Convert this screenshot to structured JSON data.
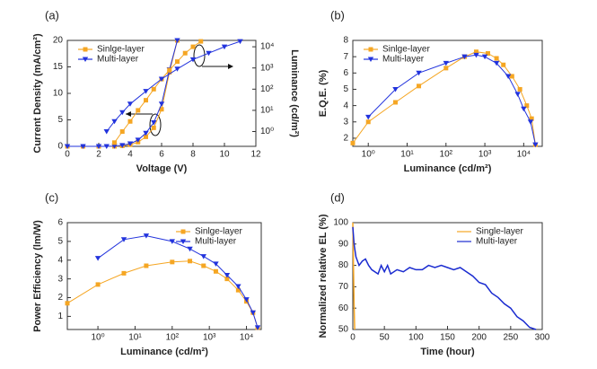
{
  "chart_data": [
    {
      "type": "line",
      "label": "(a)",
      "xlabel": "Voltage (V)",
      "ylabel": "Current Density (mA/cm²)",
      "y2label": "Luminance (cd/m²)",
      "xlim": [
        0,
        12
      ],
      "xticks": [
        0,
        2,
        4,
        6,
        8,
        10,
        12
      ],
      "ylim": [
        0,
        20
      ],
      "yticks": [
        0,
        5,
        10,
        15,
        20
      ],
      "y2lim": [
        0.2,
        20000
      ],
      "y2scale": "log",
      "y2ticks": [
        {
          "value": 1,
          "label": "10⁰"
        },
        {
          "value": 10,
          "label": "10¹"
        },
        {
          "value": 100,
          "label": "10²"
        },
        {
          "value": 1000,
          "label": "10³"
        },
        {
          "value": 10000,
          "label": "10⁴"
        }
      ],
      "legend": "upper left",
      "series": [
        {
          "name": "Sinlge-layer",
          "color": "#f5a623",
          "marker": "square",
          "x": [
            0,
            1,
            2,
            3,
            3.5,
            4,
            4.5,
            5,
            5.5,
            6,
            6.5,
            7
          ],
          "values": [
            0,
            0,
            0,
            0,
            0.1,
            0.3,
            0.8,
            1.8,
            3.5,
            7,
            14,
            20
          ]
        },
        {
          "name": "Multi-layer",
          "color": "#2233dd",
          "marker": "triangle-down",
          "x": [
            0,
            1,
            2,
            2.5,
            3,
            3.5,
            4,
            4.5,
            5,
            5.5,
            6,
            6.5,
            7
          ],
          "values": [
            0,
            0,
            0,
            0,
            0.05,
            0.2,
            0.5,
            1.2,
            2.5,
            4.5,
            8,
            14.5,
            20
          ]
        },
        {
          "color": "#f5a623",
          "marker": "square",
          "axis": "y2",
          "x": [
            3,
            3.5,
            4,
            4.5,
            5,
            5.5,
            6,
            6.5,
            7,
            7.5,
            8,
            8.5
          ],
          "values": [
            0.3,
            1,
            3,
            10,
            30,
            100,
            300,
            800,
            2000,
            5000,
            10000,
            18000
          ]
        },
        {
          "color": "#2233dd",
          "marker": "triangle-down",
          "axis": "y2",
          "x": [
            2.5,
            3,
            3.5,
            4,
            5,
            6,
            7,
            8,
            9,
            10,
            11
          ],
          "values": [
            1,
            3,
            8,
            20,
            80,
            300,
            900,
            2500,
            5000,
            10000,
            18000
          ]
        }
      ]
    },
    {
      "type": "line",
      "label": "(b)",
      "xlabel": "Luminance (cd/m²)",
      "ylabel": "E.Q.E. (%)",
      "xlim": [
        0.4,
        30000
      ],
      "xscale": "log",
      "xticks": [
        {
          "value": 1,
          "label": "10⁰"
        },
        {
          "value": 10,
          "label": "10¹"
        },
        {
          "value": 100,
          "label": "10²"
        },
        {
          "value": 1000,
          "label": "10³"
        },
        {
          "value": 10000,
          "label": "10⁴"
        }
      ],
      "ylim": [
        1.5,
        8
      ],
      "yticks": [
        2,
        3,
        4,
        5,
        6,
        7,
        8
      ],
      "legend": "upper left",
      "series": [
        {
          "name": "Sinlge-layer",
          "color": "#f5a623",
          "marker": "square",
          "x": [
            0.4,
            1,
            5,
            20,
            100,
            300,
            600,
            1200,
            2000,
            3000,
            5000,
            8000,
            12000,
            16000,
            20000
          ],
          "values": [
            1.7,
            3.0,
            4.2,
            5.2,
            6.3,
            7.0,
            7.3,
            7.2,
            6.9,
            6.5,
            5.8,
            5.0,
            4.0,
            3.2,
            1.6
          ]
        },
        {
          "name": "Multi-layer",
          "color": "#2233dd",
          "marker": "triangle-down",
          "x": [
            1,
            5,
            20,
            100,
            300,
            600,
            1000,
            2000,
            4000,
            7000,
            10000,
            15000,
            20000
          ],
          "values": [
            3.3,
            5.0,
            6.0,
            6.6,
            7.0,
            7.1,
            7.0,
            6.6,
            5.8,
            4.7,
            3.8,
            3.0,
            1.6
          ]
        }
      ]
    },
    {
      "type": "line",
      "label": "(c)",
      "xlabel": "Luminance (cd/m²)",
      "ylabel": "Power Efficiency (lm/W)",
      "xlim": [
        0.15,
        25000
      ],
      "xscale": "log",
      "xticks": [
        {
          "value": 1,
          "label": "10⁰"
        },
        {
          "value": 10,
          "label": "10¹"
        },
        {
          "value": 100,
          "label": "10²"
        },
        {
          "value": 1000,
          "label": "10³"
        },
        {
          "value": 10000,
          "label": "10⁴"
        }
      ],
      "ylim": [
        0.3,
        6
      ],
      "yticks": [
        1,
        2,
        3,
        4,
        5,
        6
      ],
      "legend": "upper right",
      "series": [
        {
          "name": "Sinlge-layer",
          "color": "#f5a623",
          "marker": "square",
          "x": [
            0.15,
            1,
            5,
            20,
            100,
            300,
            700,
            1500,
            3000,
            6000,
            10000,
            15000,
            20000
          ],
          "values": [
            1.7,
            2.7,
            3.3,
            3.7,
            3.9,
            3.95,
            3.7,
            3.4,
            3.0,
            2.4,
            1.8,
            1.2,
            0.4
          ]
        },
        {
          "name": "Multi-layer",
          "color": "#2233dd",
          "marker": "triangle-down",
          "x": [
            1,
            5,
            20,
            100,
            300,
            700,
            1500,
            3000,
            6000,
            10000,
            15000,
            20000
          ],
          "values": [
            4.1,
            5.1,
            5.3,
            5.0,
            4.6,
            4.2,
            3.8,
            3.2,
            2.6,
            1.9,
            1.2,
            0.4
          ]
        }
      ]
    },
    {
      "type": "line",
      "label": "(d)",
      "xlabel": "Time (hour)",
      "ylabel": "Normalized relative EL (%)",
      "xlim": [
        0,
        300
      ],
      "xticks": [
        0,
        50,
        100,
        150,
        200,
        250,
        300
      ],
      "ylim": [
        50,
        100
      ],
      "yticks": [
        50,
        60,
        70,
        80,
        90,
        100
      ],
      "legend": "upper right",
      "series": [
        {
          "name": "Single-layer",
          "color": "#f5a623",
          "x": [
            0,
            0.5,
            1,
            1.5,
            2,
            2.5,
            3
          ],
          "values": [
            100,
            90,
            80,
            70,
            62,
            55,
            50
          ]
        },
        {
          "name": "Multi-layer",
          "color": "#1a2bd0",
          "x": [
            0,
            2,
            5,
            10,
            15,
            20,
            25,
            30,
            40,
            45,
            50,
            55,
            60,
            70,
            80,
            90,
            100,
            110,
            120,
            130,
            140,
            150,
            160,
            170,
            180,
            190,
            200,
            210,
            220,
            230,
            240,
            250,
            260,
            270,
            280,
            290
          ],
          "values": [
            98,
            90,
            84,
            80,
            82,
            83,
            80,
            78,
            76,
            80,
            77,
            80,
            76,
            78,
            77,
            79,
            78,
            78,
            80,
            79,
            80,
            79,
            78,
            79,
            77,
            75,
            72,
            71,
            67,
            65,
            62,
            60,
            56,
            54,
            51,
            50
          ]
        }
      ]
    }
  ]
}
